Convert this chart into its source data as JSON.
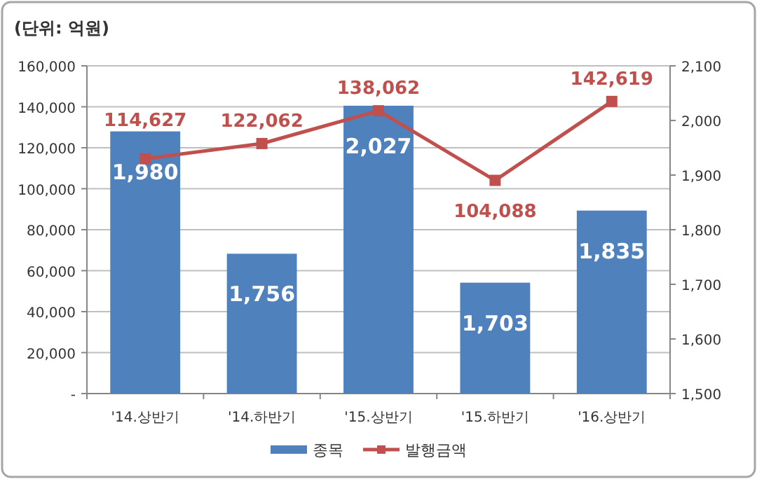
{
  "chart_data": {
    "type": "bar",
    "title": "(단위: 억원)",
    "categories": [
      "'14.상반기",
      "'14.하반기",
      "'15.상반기",
      "'15.하반기",
      "'16.상반기"
    ],
    "series": [
      {
        "name": "종목",
        "axis": "y2",
        "color": "#4f81bd",
        "values": [
          1980,
          1756,
          2027,
          1703,
          1835
        ],
        "value_labels": [
          "1,980",
          "1,756",
          "2,027",
          "1,703",
          "1,835"
        ]
      },
      {
        "name": "발행금액",
        "type": "line",
        "color": "#c0504d",
        "marker": "square",
        "values": [
          114627,
          122062,
          138062,
          104088,
          142619
        ],
        "value_labels": [
          "114,627",
          "122,062",
          "138,062",
          "104,088",
          "142,619"
        ]
      }
    ],
    "ylim": [
      0,
      160000
    ],
    "yticks": [
      {
        "value": 0,
        "label": "-"
      },
      {
        "value": 20000,
        "label": "20,000"
      },
      {
        "value": 40000,
        "label": "40,000"
      },
      {
        "value": 60000,
        "label": "60,000"
      },
      {
        "value": 80000,
        "label": "80,000"
      },
      {
        "value": 100000,
        "label": "100,000"
      },
      {
        "value": 120000,
        "label": "120,000"
      },
      {
        "value": 140000,
        "label": "140,000"
      },
      {
        "value": 160000,
        "label": "160,000"
      }
    ],
    "y2lim": [
      1500,
      2100
    ],
    "y2ticks": [
      {
        "value": 1500,
        "label": "1,500"
      },
      {
        "value": 1600,
        "label": "1,600"
      },
      {
        "value": 1700,
        "label": "1,700"
      },
      {
        "value": 1800,
        "label": "1,800"
      },
      {
        "value": 1900,
        "label": "1,900"
      },
      {
        "value": 2000,
        "label": "2,000"
      },
      {
        "value": 2100,
        "label": "2,100"
      }
    ],
    "grid": "y",
    "legend": "bottom"
  }
}
